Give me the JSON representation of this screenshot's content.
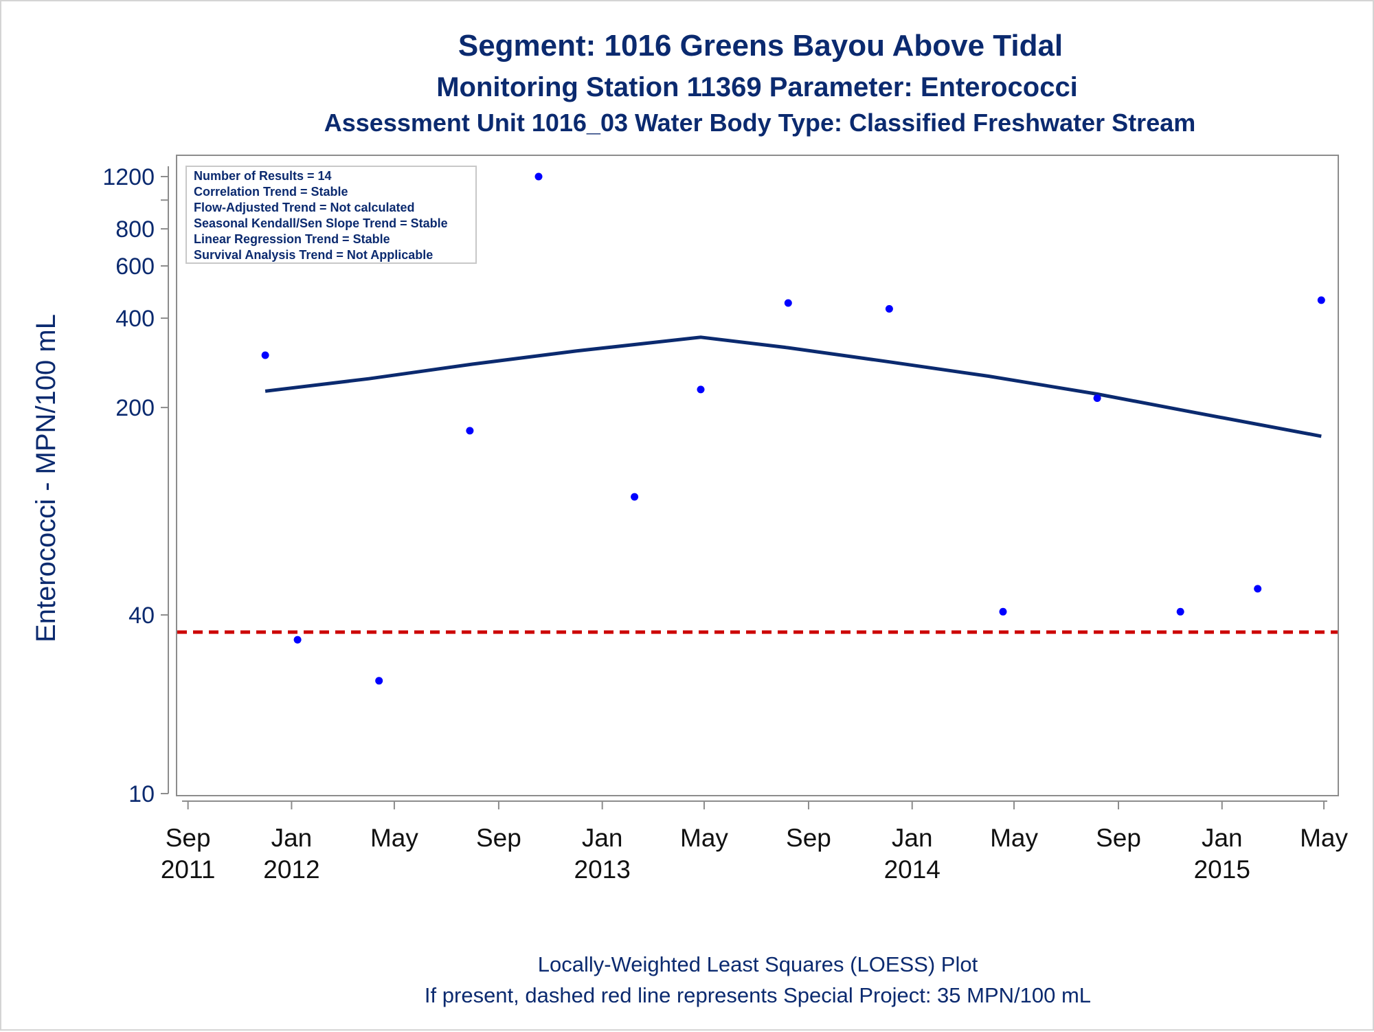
{
  "titles": {
    "line1": "Segment: 1016  Greens Bayou Above Tidal",
    "line2": "Monitoring Station 11369 Parameter: Enterococci",
    "line3": "Assessment Unit 1016_03   Water Body Type: Classified Freshwater Stream"
  },
  "footnotes": {
    "line1": "Locally-Weighted Least Squares (LOESS) Plot",
    "line2": "If present, dashed red line represents Special Project: 35 MPN/100 mL"
  },
  "stats_box": {
    "lines": [
      "Number of Results = 14",
      "Correlation Trend = Stable",
      "Flow-Adjusted Trend = Not calculated",
      "Seasonal Kendall/Sen Slope Trend = Stable",
      "Linear Regression Trend = Stable",
      "Survival Analysis Trend = Not Applicable"
    ]
  },
  "colors": {
    "title": "#0b2a6f",
    "points": "#0000ff",
    "loess": "#0b2a6f",
    "reference": "#cc0000",
    "axis": "#8c8c8c"
  },
  "chart_data": {
    "type": "scatter",
    "xlabel": "",
    "ylabel": "Enterococci - MPN/100 mL",
    "y_scale": "log",
    "ylim": [
      10,
      1300
    ],
    "xlim": [
      "2011-08-25",
      "2015-05-05"
    ],
    "y_ticks": [
      {
        "value": 10,
        "label": "10"
      },
      {
        "value": 40,
        "label": "40"
      },
      {
        "value": 200,
        "label": "200"
      },
      {
        "value": 400,
        "label": "400"
      },
      {
        "value": 600,
        "label": "600"
      },
      {
        "value": 800,
        "label": "800"
      },
      {
        "value": 1000,
        "label": ""
      },
      {
        "value": 1200,
        "label": "1200"
      }
    ],
    "x_ticks": [
      {
        "date": "2011-09-01",
        "month": "Sep",
        "year": "2011"
      },
      {
        "date": "2012-01-01",
        "month": "Jan",
        "year": "2012"
      },
      {
        "date": "2012-05-01",
        "month": "May",
        "year": ""
      },
      {
        "date": "2012-09-01",
        "month": "Sep",
        "year": ""
      },
      {
        "date": "2013-01-01",
        "month": "Jan",
        "year": "2013"
      },
      {
        "date": "2013-05-01",
        "month": "May",
        "year": ""
      },
      {
        "date": "2013-09-01",
        "month": "Sep",
        "year": ""
      },
      {
        "date": "2014-01-01",
        "month": "Jan",
        "year": "2014"
      },
      {
        "date": "2014-05-01",
        "month": "May",
        "year": ""
      },
      {
        "date": "2014-09-01",
        "month": "Sep",
        "year": ""
      },
      {
        "date": "2015-01-01",
        "month": "Jan",
        "year": "2015"
      },
      {
        "date": "2015-05-01",
        "month": "May",
        "year": ""
      }
    ],
    "series": [
      {
        "points": [
          {
            "x": "2011-12-01",
            "y": 300
          },
          {
            "x": "2012-01-08",
            "y": 33
          },
          {
            "x": "2012-04-13",
            "y": 24
          },
          {
            "x": "2012-07-29",
            "y": 167
          },
          {
            "x": "2012-10-18",
            "y": 1200
          },
          {
            "x": "2013-02-08",
            "y": 100
          },
          {
            "x": "2013-04-27",
            "y": 230
          },
          {
            "x": "2013-08-08",
            "y": 450
          },
          {
            "x": "2013-12-05",
            "y": 430
          },
          {
            "x": "2014-04-18",
            "y": 41
          },
          {
            "x": "2014-08-07",
            "y": 215
          },
          {
            "x": "2014-11-13",
            "y": 41
          },
          {
            "x": "2015-02-12",
            "y": 49
          },
          {
            "x": "2015-04-28",
            "y": 460
          }
        ]
      },
      {
        "type": "line",
        "points": [
          {
            "x": "2011-12-01",
            "y": 227
          },
          {
            "x": "2012-04-01",
            "y": 250
          },
          {
            "x": "2012-08-01",
            "y": 280
          },
          {
            "x": "2012-12-01",
            "y": 310
          },
          {
            "x": "2013-04-27",
            "y": 345
          },
          {
            "x": "2013-08-08",
            "y": 318
          },
          {
            "x": "2013-12-05",
            "y": 285
          },
          {
            "x": "2014-04-01",
            "y": 255
          },
          {
            "x": "2014-08-07",
            "y": 222
          },
          {
            "x": "2014-12-01",
            "y": 192
          },
          {
            "x": "2015-04-28",
            "y": 160
          }
        ]
      },
      {
        "type": "reference-line",
        "y": 35
      }
    ]
  }
}
